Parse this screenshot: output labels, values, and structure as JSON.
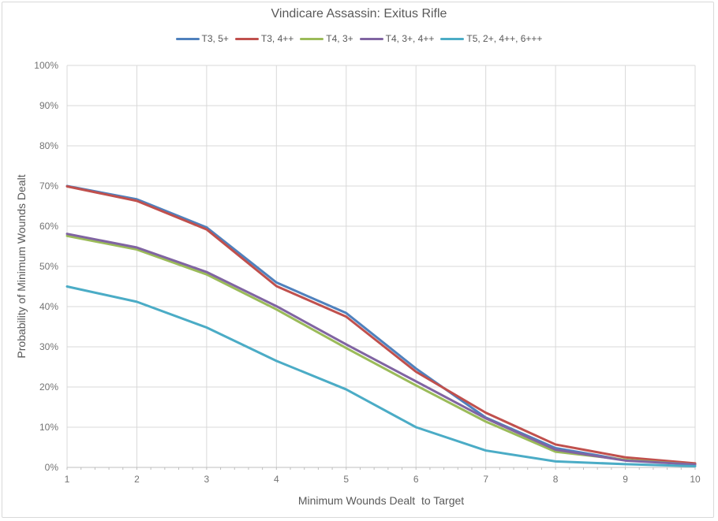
{
  "chart_data": {
    "type": "line",
    "title": "Vindicare Assassin: Exitus Rifle",
    "xlabel": "Minimum Wounds Dealt  to Target",
    "ylabel": "Probability of Minimum Wounds Dealt",
    "categories": [
      1,
      2,
      3,
      4,
      5,
      6,
      7,
      8,
      9,
      10
    ],
    "x_tick_labels": [
      "1",
      "2",
      "3",
      "4",
      "5",
      "6",
      "7",
      "8",
      "9",
      "10"
    ],
    "y_tick_labels": [
      "0%",
      "10%",
      "20%",
      "30%",
      "40%",
      "50%",
      "60%",
      "70%",
      "80%",
      "90%",
      "100%"
    ],
    "ylim": [
      0,
      100
    ],
    "ytick_step": 10,
    "x_minor_tick_step": 0.2,
    "grid": true,
    "legend_position": "top",
    "value_unit": "percent",
    "series": [
      {
        "name": "T3, 5+",
        "color": "#4F81BD",
        "values": [
          70.0,
          66.7,
          59.7,
          46.0,
          38.4,
          24.6,
          12.4,
          4.8,
          1.8,
          0.8
        ]
      },
      {
        "name": "T3, 4++",
        "color": "#C0504D",
        "values": [
          69.9,
          66.3,
          59.2,
          45.1,
          37.5,
          23.8,
          13.6,
          5.7,
          2.5,
          1.0
        ]
      },
      {
        "name": "T4, 3+",
        "color": "#9BBB59",
        "values": [
          57.6,
          54.2,
          48.0,
          39.3,
          29.7,
          20.4,
          11.4,
          3.9,
          1.9,
          0.7
        ]
      },
      {
        "name": "T4, 3+, 4++",
        "color": "#8064A2",
        "values": [
          58.1,
          54.7,
          48.6,
          40.1,
          30.6,
          21.4,
          12.2,
          4.4,
          1.7,
          0.7
        ]
      },
      {
        "name": "T5, 2+, 4++, 6+++",
        "color": "#4BACC6",
        "values": [
          45.0,
          41.2,
          34.8,
          26.5,
          19.4,
          10.0,
          4.2,
          1.5,
          0.8,
          0.3
        ]
      }
    ],
    "colors": {
      "gridline": "#D9D9D9",
      "axis_line": "#BFBFBF",
      "tick_text": "#737373",
      "text": "#595959",
      "background": "#FFFFFF",
      "border": "#D9D9D9"
    }
  }
}
